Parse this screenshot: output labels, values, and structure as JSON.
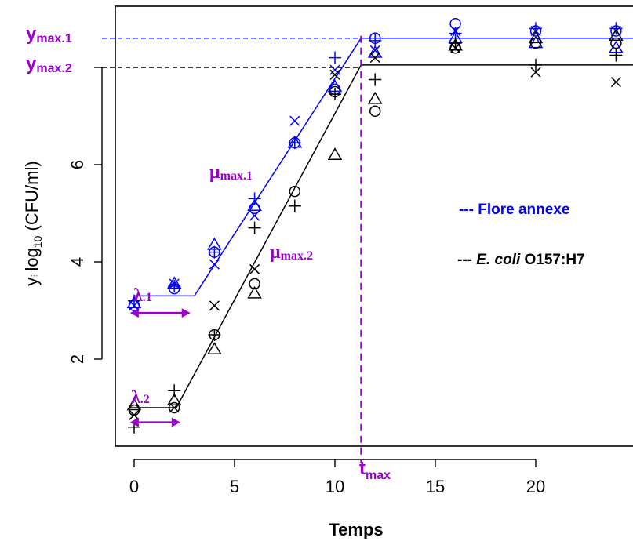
{
  "chart_data": {
    "type": "scatter",
    "xlabel": "Temps",
    "ylabel_pre": "y",
    "ylabel_sep": "⁝",
    "ylabel_log": "log",
    "ylabel_sub": "10",
    "ylabel_unit": " (CFU/ml)",
    "xlim": [
      -2.5,
      25
    ],
    "ylim": [
      -0.2,
      9.25
    ],
    "x_ticks": [
      0,
      5,
      10,
      15,
      20
    ],
    "y_ticks": [
      2,
      4,
      6
    ],
    "legend": [
      {
        "label": "--- Flore annexe",
        "color": "#0000ff"
      },
      {
        "dash": "--- ",
        "label_italic": "E. coli",
        "label_rest": " O157:H7",
        "color": "#000000"
      }
    ],
    "series": [
      {
        "name": "Flore annexe",
        "color": "#0000ff",
        "points": [
          {
            "x": 0,
            "y": 3.1,
            "m": "circle"
          },
          {
            "x": 0,
            "y": 3.15,
            "m": "triangle"
          },
          {
            "x": 0,
            "y": 3.2,
            "m": "plus"
          },
          {
            "x": 0,
            "y": 3.1,
            "m": "cross"
          },
          {
            "x": 2,
            "y": 3.45,
            "m": "circle"
          },
          {
            "x": 2,
            "y": 3.55,
            "m": "triangle"
          },
          {
            "x": 2,
            "y": 3.5,
            "m": "plus"
          },
          {
            "x": 2,
            "y": 3.55,
            "m": "cross"
          },
          {
            "x": 4,
            "y": 4.2,
            "m": "circle"
          },
          {
            "x": 4,
            "y": 4.35,
            "m": "triangle"
          },
          {
            "x": 4,
            "y": 4.2,
            "m": "plus"
          },
          {
            "x": 4,
            "y": 3.95,
            "m": "cross"
          },
          {
            "x": 6,
            "y": 5.1,
            "m": "circle"
          },
          {
            "x": 6,
            "y": 5.15,
            "m": "triangle"
          },
          {
            "x": 6,
            "y": 5.3,
            "m": "plus"
          },
          {
            "x": 6,
            "y": 4.95,
            "m": "cross"
          },
          {
            "x": 8,
            "y": 6.45,
            "m": "circle"
          },
          {
            "x": 8,
            "y": 6.45,
            "m": "triangle"
          },
          {
            "x": 8,
            "y": 6.45,
            "m": "plus"
          },
          {
            "x": 8,
            "y": 6.9,
            "m": "cross"
          },
          {
            "x": 10,
            "y": 7.55,
            "m": "circle"
          },
          {
            "x": 10,
            "y": 7.6,
            "m": "triangle"
          },
          {
            "x": 10,
            "y": 8.2,
            "m": "plus"
          },
          {
            "x": 10,
            "y": 7.95,
            "m": "cross"
          },
          {
            "x": 12,
            "y": 8.6,
            "m": "circle"
          },
          {
            "x": 12,
            "y": 8.3,
            "m": "triangle"
          },
          {
            "x": 12,
            "y": 8.55,
            "m": "plus"
          },
          {
            "x": 12,
            "y": 8.35,
            "m": "cross"
          },
          {
            "x": 16,
            "y": 8.9,
            "m": "circle"
          },
          {
            "x": 16,
            "y": 8.6,
            "m": "triangle"
          },
          {
            "x": 16,
            "y": 8.7,
            "m": "plus"
          },
          {
            "x": 16,
            "y": 8.75,
            "m": "cross"
          },
          {
            "x": 20,
            "y": 8.75,
            "m": "circle"
          },
          {
            "x": 20,
            "y": 8.5,
            "m": "triangle"
          },
          {
            "x": 20,
            "y": 8.8,
            "m": "plus"
          },
          {
            "x": 20,
            "y": 8.75,
            "m": "cross"
          },
          {
            "x": 24,
            "y": 8.75,
            "m": "circle"
          },
          {
            "x": 24,
            "y": 8.4,
            "m": "triangle"
          },
          {
            "x": 24,
            "y": 8.8,
            "m": "plus"
          },
          {
            "x": 24,
            "y": 8.75,
            "m": "cross"
          }
        ],
        "fit": [
          [
            0,
            3.3
          ],
          [
            3,
            3.3
          ],
          [
            11.3,
            8.6
          ],
          [
            25,
            8.6
          ]
        ]
      },
      {
        "name": "E. coli O157:H7",
        "color": "#000000",
        "points": [
          {
            "x": 0,
            "y": 0.95,
            "m": "circle"
          },
          {
            "x": 0,
            "y": 1.05,
            "m": "triangle"
          },
          {
            "x": 0,
            "y": 0.6,
            "m": "plus"
          },
          {
            "x": 0,
            "y": 0.85,
            "m": "cross"
          },
          {
            "x": 2,
            "y": 1.0,
            "m": "circle"
          },
          {
            "x": 2,
            "y": 1.15,
            "m": "triangle"
          },
          {
            "x": 2,
            "y": 1.35,
            "m": "plus"
          },
          {
            "x": 2,
            "y": 1.0,
            "m": "cross"
          },
          {
            "x": 4,
            "y": 2.5,
            "m": "circle"
          },
          {
            "x": 4,
            "y": 2.2,
            "m": "triangle"
          },
          {
            "x": 4,
            "y": 2.5,
            "m": "plus"
          },
          {
            "x": 4,
            "y": 3.1,
            "m": "cross"
          },
          {
            "x": 6,
            "y": 3.55,
            "m": "circle"
          },
          {
            "x": 6,
            "y": 3.35,
            "m": "triangle"
          },
          {
            "x": 6,
            "y": 4.7,
            "m": "plus"
          },
          {
            "x": 6,
            "y": 3.85,
            "m": "cross"
          },
          {
            "x": 8,
            "y": 5.45,
            "m": "circle"
          },
          {
            "x": 8,
            "y": 5.15,
            "m": "plus"
          },
          {
            "x": 10,
            "y": 7.5,
            "m": "circle"
          },
          {
            "x": 10,
            "y": 6.2,
            "m": "triangle"
          },
          {
            "x": 10,
            "y": 7.45,
            "m": "plus"
          },
          {
            "x": 10,
            "y": 7.85,
            "m": "cross"
          },
          {
            "x": 12,
            "y": 7.1,
            "m": "circle"
          },
          {
            "x": 12,
            "y": 7.35,
            "m": "triangle"
          },
          {
            "x": 12,
            "y": 7.75,
            "m": "plus"
          },
          {
            "x": 12,
            "y": 8.2,
            "m": "cross"
          },
          {
            "x": 16,
            "y": 8.4,
            "m": "circle"
          },
          {
            "x": 16,
            "y": 8.45,
            "m": "triangle"
          },
          {
            "x": 16,
            "y": 8.5,
            "m": "plus"
          },
          {
            "x": 16,
            "y": 8.4,
            "m": "cross"
          },
          {
            "x": 20,
            "y": 8.5,
            "m": "circle"
          },
          {
            "x": 20,
            "y": 8.6,
            "m": "triangle"
          },
          {
            "x": 20,
            "y": 8.05,
            "m": "plus"
          },
          {
            "x": 20,
            "y": 7.9,
            "m": "cross"
          },
          {
            "x": 24,
            "y": 8.5,
            "m": "circle"
          },
          {
            "x": 24,
            "y": 8.65,
            "m": "triangle"
          },
          {
            "x": 24,
            "y": 8.25,
            "m": "plus"
          },
          {
            "x": 24,
            "y": 7.7,
            "m": "cross"
          }
        ],
        "fit": [
          [
            -0.2,
            1.0
          ],
          [
            2.1,
            1.0
          ],
          [
            11.3,
            8.05
          ],
          [
            25,
            8.05
          ]
        ]
      }
    ],
    "annotations": {
      "ymax1": {
        "label": "y",
        "sub": "max.1",
        "y": 8.6,
        "color": "#0000ff"
      },
      "ymax2": {
        "label": "y",
        "sub": "max.2",
        "y": 8.0,
        "color": "#000000"
      },
      "tmax": {
        "label": "t",
        "sub": "max",
        "x": 11.3
      },
      "mu1": {
        "label": "μ",
        "sub": "max.1",
        "x": 4.8,
        "y": 5.6
      },
      "mu2": {
        "label": "μ",
        "sub": "max.2",
        "x": 7.6,
        "y": 4.45
      },
      "lambda1": {
        "label": "λ",
        "sub": ".1",
        "x0": -0.2,
        "x1": 2.8,
        "y": 2.95
      },
      "lambda2": {
        "label": "λ",
        "sub": ".2",
        "x0": -0.2,
        "x1": 2.3,
        "y": 0.7
      },
      "accent_color": "#9900cc"
    }
  }
}
